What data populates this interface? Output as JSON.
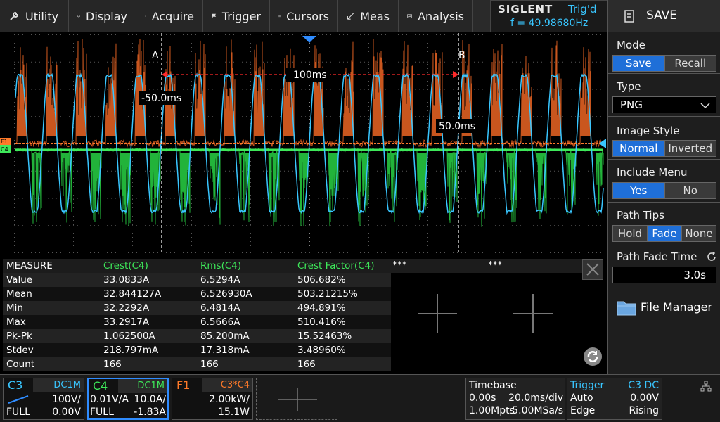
{
  "menu": {
    "utility": "Utility",
    "display": "Display",
    "acquire": "Acquire",
    "trigger": "Trigger",
    "cursors": "Cursors",
    "meas": "Meas",
    "analysis": "Analysis"
  },
  "brand": {
    "logo": "SIGLENT",
    "trig_state": "Trig'd",
    "frequency": "f = 49.98680Hz"
  },
  "panel": {
    "title": "SAVE",
    "mode": {
      "label": "Mode",
      "options": [
        "Save",
        "Recall"
      ],
      "selected": "Save"
    },
    "type": {
      "label": "Type",
      "value": "PNG"
    },
    "image_style": {
      "label": "Image Style",
      "options": [
        "Normal",
        "Inverted"
      ],
      "selected": "Normal"
    },
    "include_menu": {
      "label": "Include Menu",
      "options": [
        "Yes",
        "No"
      ],
      "selected": "Yes"
    },
    "path_tips": {
      "label": "Path Tips",
      "options": [
        "Hold",
        "Fade",
        "None"
      ],
      "selected": "Fade"
    },
    "path_fade_time": {
      "label": "Path Fade Time",
      "value": "3.0s"
    },
    "file_manager": "File Manager"
  },
  "cursors": {
    "a_label": "A",
    "b_label": "B",
    "delta": "100ms",
    "a_time": "-50.0ms",
    "b_time": "50.0ms"
  },
  "markers": {
    "f1": "F1",
    "c4": "C4"
  },
  "measure": {
    "headers": [
      "MEASURE",
      "Crest(C4)",
      "Rms(C4)",
      "Crest Factor(C4)",
      "***",
      "***"
    ],
    "rows": [
      {
        "name": "Value",
        "v": [
          "33.0833A",
          "6.5294A",
          "506.682%"
        ]
      },
      {
        "name": "Mean",
        "v": [
          "32.844127A",
          "6.526930A",
          "503.21215%"
        ]
      },
      {
        "name": "Min",
        "v": [
          "32.2292A",
          "6.4814A",
          "494.891%"
        ]
      },
      {
        "name": "Max",
        "v": [
          "33.2917A",
          "6.5666A",
          "510.416%"
        ]
      },
      {
        "name": "Pk-Pk",
        "v": [
          "1.062500A",
          "85.200mA",
          "15.52463%"
        ]
      },
      {
        "name": "Stdev",
        "v": [
          "218.797mA",
          "17.318mA",
          "3.48960%"
        ]
      },
      {
        "name": "Count",
        "v": [
          "166",
          "166",
          "166"
        ]
      }
    ]
  },
  "channels": {
    "c3": {
      "name": "C3",
      "coupling": "DC1M",
      "scale": "100V/",
      "bw": "FULL",
      "offset": "0.00V",
      "color": "#39c6ff"
    },
    "c4": {
      "name": "C4",
      "coupling": "DC1M",
      "probe": "0.01V/A",
      "scale": "10.0A/",
      "bw": "FULL",
      "offset": "-1.83A",
      "color": "#3ee85a"
    },
    "f1": {
      "name": "F1",
      "source": "C3*C4",
      "scale": "2.00kW/",
      "offset": "15.1W",
      "color": "#ff7a29"
    }
  },
  "timebase": {
    "label": "Timebase",
    "delay": "0.00s",
    "scale": "20.0ms/div",
    "mem": "1.00Mpts",
    "rate": "5.00MSa/s"
  },
  "trigger": {
    "label": "Trigger",
    "source": "C3 DC",
    "mode": "Auto",
    "level": "0.00V",
    "type": "Edge",
    "slope": "Rising"
  }
}
